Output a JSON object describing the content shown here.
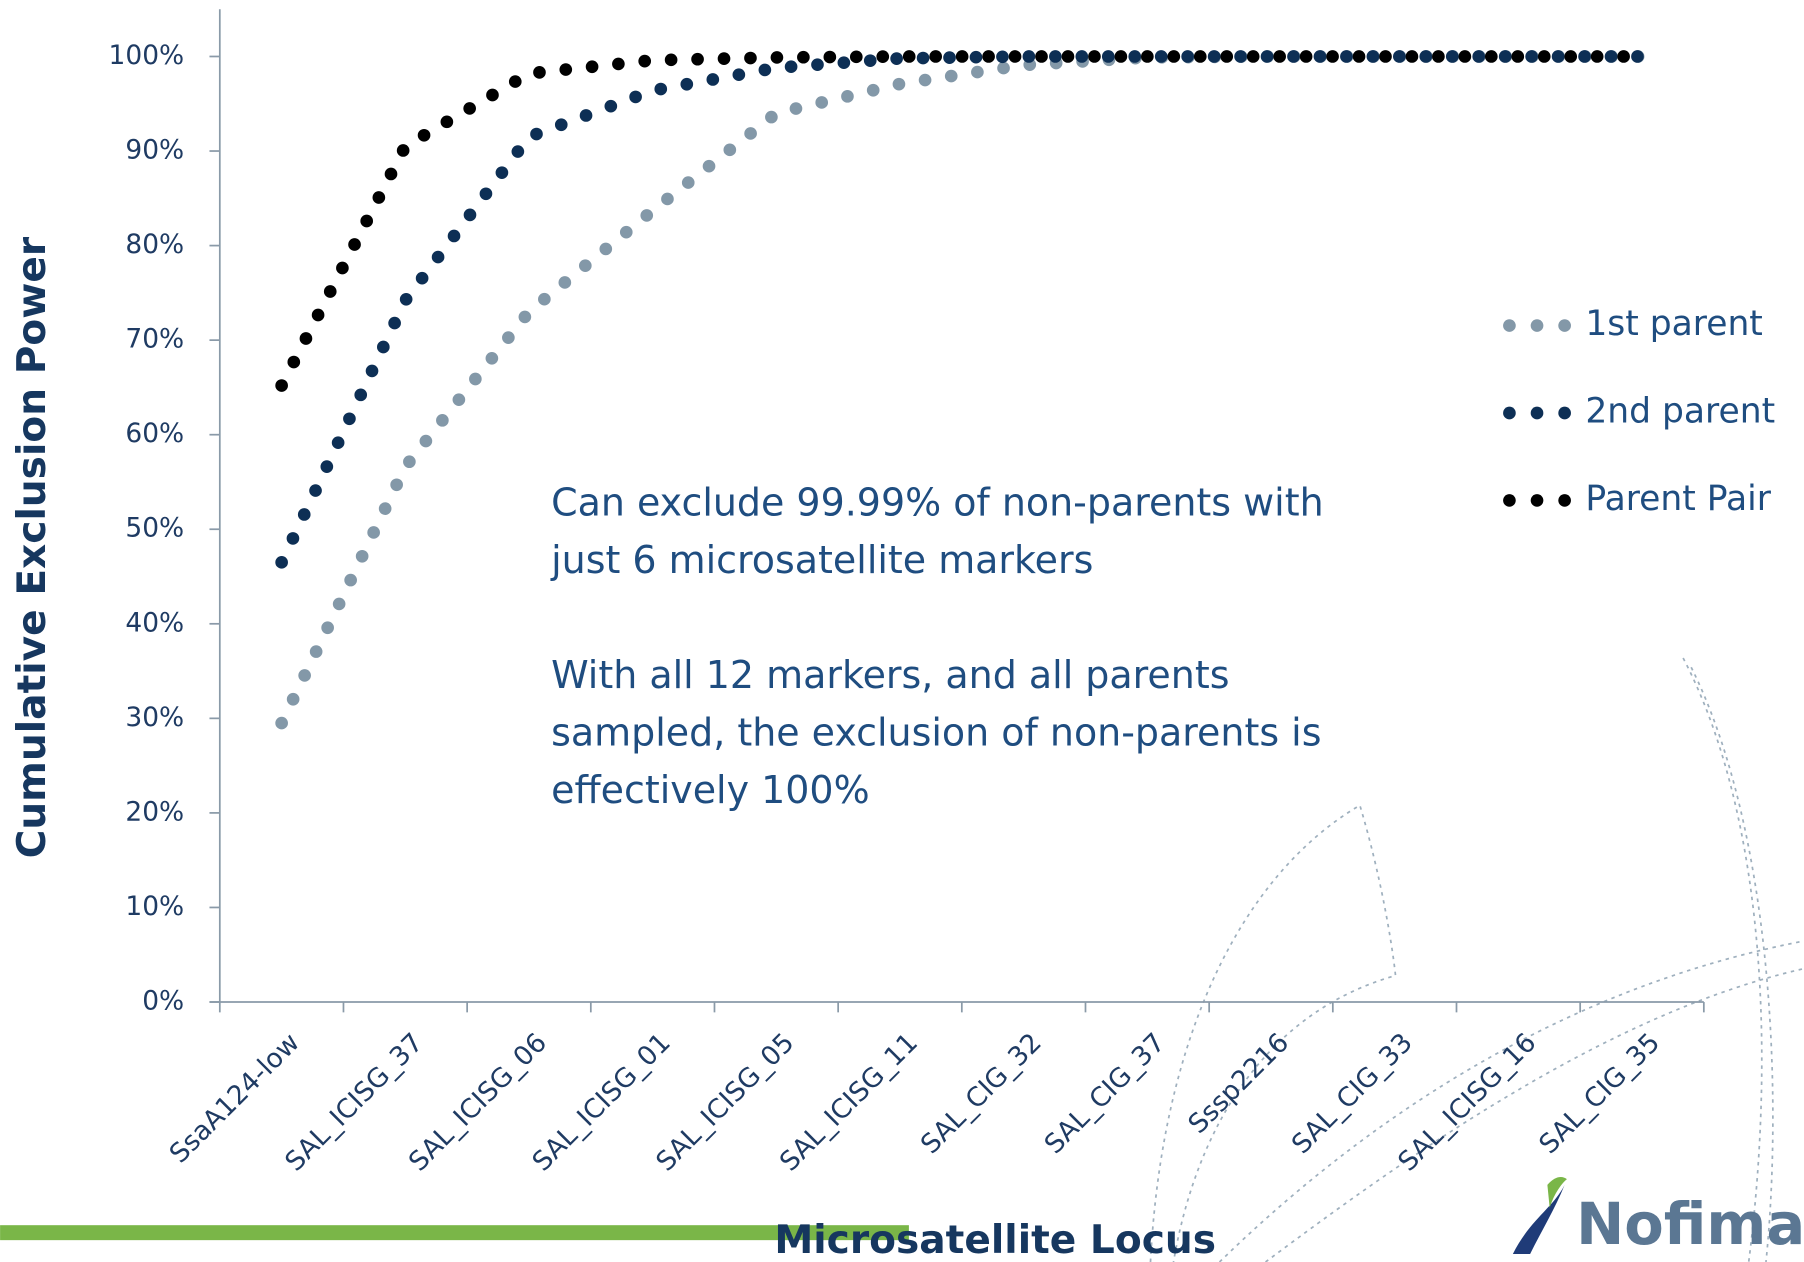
{
  "chart_data": {
    "type": "line",
    "y_label": "Cumulative  Exclusion Power",
    "x_label": "Microsatellite Locus",
    "categories": [
      "SsaA124-low",
      "SAL_ICISG_37",
      "SAL_ICISG_06",
      "SAL_ICISG_01",
      "SAL_ICISG_05",
      "SAL_ICISG_11",
      "SAL_CIG_32",
      "SAL_CIG_37",
      "Sssp2216",
      "SAL_CIG_33",
      "SAL_ICISG_16",
      "SAL_CIG_35"
    ],
    "series": [
      {
        "name": "1st parent",
        "color": "#8398a8",
        "values": [
          29.5,
          56.6,
          73,
          83.7,
          94,
          97.1,
          99.1,
          99.9,
          100,
          100,
          100,
          100
        ]
      },
      {
        "name": "2nd parent",
        "color": "#0d2f55",
        "values": [
          46.5,
          74.2,
          91.5,
          96.4,
          98.8,
          99.8,
          100,
          100,
          100,
          100,
          100,
          100
        ]
      },
      {
        "name": "Parent Pair",
        "color": "#000000",
        "values": [
          65.2,
          90.5,
          98.2,
          99.6,
          99.9,
          100,
          100,
          100,
          100,
          100,
          100,
          100
        ]
      }
    ],
    "ylim": [
      0,
      105
    ],
    "yticks": [
      {
        "value": 0,
        "label": "0%"
      },
      {
        "value": 10,
        "label": "10%"
      },
      {
        "value": 20,
        "label": "20%"
      },
      {
        "value": 30,
        "label": "30%"
      },
      {
        "value": 40,
        "label": "40%"
      },
      {
        "value": 50,
        "label": "50%"
      },
      {
        "value": 60,
        "label": "60%"
      },
      {
        "value": 70,
        "label": "70%"
      },
      {
        "value": 80,
        "label": "80%"
      },
      {
        "value": 90,
        "label": "90%"
      },
      {
        "value": 100,
        "label": "100%"
      }
    ],
    "grid": false,
    "legend": "right",
    "annotations": [
      [
        "Can exclude 99.99%  of non-parents with",
        "just 6 microsatellite markers"
      ],
      [
        "With all 12 markers, and all parents",
        "sampled, the exclusion of non-parents is",
        "effectively 100%"
      ]
    ]
  },
  "logo": "Nofima"
}
